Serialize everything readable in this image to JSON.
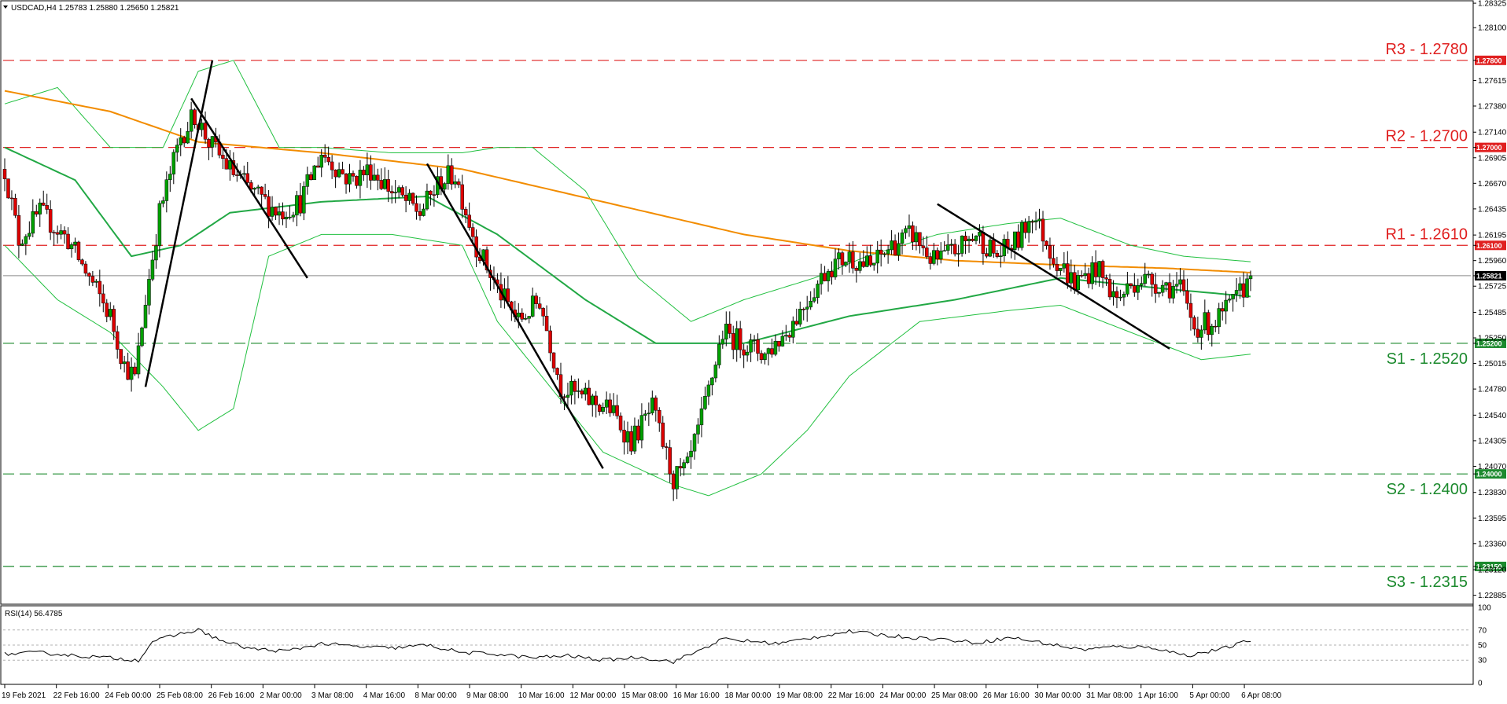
{
  "header": {
    "symbol_line": "USDCAD,H4  1.25783 1.25880 1.25650 1.25821",
    "rsi_label": "RSI(14) 56.4785"
  },
  "colors": {
    "bull": "#00a000",
    "bear": "#dd0000",
    "ma_slow": "#f28c00",
    "ma_fast": "#22a845",
    "bands": "#22c040",
    "resistance": "#e02020",
    "support": "#1c8a2e",
    "trend": "#000000"
  },
  "chart_data": [
    {
      "type": "candlestick",
      "symbol": "USDCAD",
      "timeframe": "H4",
      "y_ticks": [
        "1.28325",
        "1.28100",
        "1.27800",
        "1.27615",
        "1.27380",
        "1.27140",
        "1.27000",
        "1.26905",
        "1.26670",
        "1.26435",
        "1.26195",
        "1.26100",
        "1.25960",
        "1.25821",
        "1.25725",
        "1.25485",
        "1.25250",
        "1.25200",
        "1.25015",
        "1.24780",
        "1.24540",
        "1.24305",
        "1.24070",
        "1.24000",
        "1.23830",
        "1.23595",
        "1.23360",
        "1.23150",
        "1.23120",
        "1.22885"
      ],
      "ylim": [
        1.2281,
        1.2834
      ],
      "x_ticks": [
        "19 Feb 2021",
        "22 Feb 16:00",
        "24 Feb 00:00",
        "25 Feb 08:00",
        "26 Feb 16:00",
        "2 Mar 00:00",
        "3 Mar 08:00",
        "4 Mar 16:00",
        "8 Mar 00:00",
        "9 Mar 08:00",
        "10 Mar 16:00",
        "12 Mar 00:00",
        "15 Mar 08:00",
        "16 Mar 16:00",
        "18 Mar 00:00",
        "19 Mar 08:00",
        "22 Mar 16:00",
        "24 Mar 00:00",
        "25 Mar 08:00",
        "26 Mar 16:00",
        "30 Mar 00:00",
        "31 Mar 08:00",
        "1 Apr 16:00",
        "5 Apr 00:00",
        "6 Apr 08:00"
      ],
      "levels": [
        {
          "label": "R3 - 1.2780",
          "value": 1.278,
          "badge": "1.27800",
          "kind": "resistance"
        },
        {
          "label": "R2 - 1.2700",
          "value": 1.27,
          "badge": "1.27000",
          "kind": "resistance"
        },
        {
          "label": "R1 - 1.2610",
          "value": 1.261,
          "badge": "1.26100",
          "kind": "resistance"
        },
        {
          "label": "S1 - 1.2520",
          "value": 1.252,
          "badge": "1.25200",
          "kind": "support"
        },
        {
          "label": "S2 - 1.2400",
          "value": 1.24,
          "badge": "1.24000",
          "kind": "support"
        },
        {
          "label": "S3 - 1.2315",
          "value": 1.2315,
          "badge": "1.23150",
          "kind": "support"
        }
      ],
      "current_price": {
        "value": 1.25821,
        "badge": "1.25821"
      },
      "ohlc_waypoints": [
        {
          "i": 0,
          "c": 1.268
        },
        {
          "i": 4,
          "c": 1.2615
        },
        {
          "i": 10,
          "c": 1.264
        },
        {
          "i": 18,
          "c": 1.2615
        },
        {
          "i": 24,
          "c": 1.258
        },
        {
          "i": 30,
          "c": 1.2545
        },
        {
          "i": 34,
          "c": 1.25
        },
        {
          "i": 37,
          "c": 1.2488
        },
        {
          "i": 40,
          "c": 1.256
        },
        {
          "i": 44,
          "c": 1.264
        },
        {
          "i": 50,
          "c": 1.271
        },
        {
          "i": 54,
          "c": 1.273
        },
        {
          "i": 58,
          "c": 1.2705
        },
        {
          "i": 64,
          "c": 1.268
        },
        {
          "i": 70,
          "c": 1.266
        },
        {
          "i": 78,
          "c": 1.264
        },
        {
          "i": 84,
          "c": 1.265
        },
        {
          "i": 90,
          "c": 1.2695
        },
        {
          "i": 98,
          "c": 1.267
        },
        {
          "i": 104,
          "c": 1.268
        },
        {
          "i": 110,
          "c": 1.266
        },
        {
          "i": 118,
          "c": 1.264
        },
        {
          "i": 124,
          "c": 1.267
        },
        {
          "i": 128,
          "c": 1.2675
        },
        {
          "i": 134,
          "c": 1.261
        },
        {
          "i": 140,
          "c": 1.257
        },
        {
          "i": 146,
          "c": 1.254
        },
        {
          "i": 152,
          "c": 1.256
        },
        {
          "i": 158,
          "c": 1.248
        },
        {
          "i": 164,
          "c": 1.247
        },
        {
          "i": 172,
          "c": 1.246
        },
        {
          "i": 178,
          "c": 1.243
        },
        {
          "i": 184,
          "c": 1.246
        },
        {
          "i": 190,
          "c": 1.2395
        },
        {
          "i": 194,
          "c": 1.2405
        },
        {
          "i": 198,
          "c": 1.245
        },
        {
          "i": 204,
          "c": 1.253
        },
        {
          "i": 210,
          "c": 1.252
        },
        {
          "i": 216,
          "c": 1.251
        },
        {
          "i": 222,
          "c": 1.253
        },
        {
          "i": 228,
          "c": 1.256
        },
        {
          "i": 234,
          "c": 1.259
        },
        {
          "i": 240,
          "c": 1.26
        },
        {
          "i": 246,
          "c": 1.259
        },
        {
          "i": 252,
          "c": 1.261
        },
        {
          "i": 258,
          "c": 1.262
        },
        {
          "i": 264,
          "c": 1.2595
        },
        {
          "i": 270,
          "c": 1.2605
        },
        {
          "i": 276,
          "c": 1.262
        },
        {
          "i": 282,
          "c": 1.26
        },
        {
          "i": 288,
          "c": 1.2615
        },
        {
          "i": 292,
          "c": 1.264
        },
        {
          "i": 298,
          "c": 1.26
        },
        {
          "i": 304,
          "c": 1.2575
        },
        {
          "i": 310,
          "c": 1.259
        },
        {
          "i": 316,
          "c": 1.256
        },
        {
          "i": 322,
          "c": 1.258
        },
        {
          "i": 328,
          "c": 1.2575
        },
        {
          "i": 334,
          "c": 1.257
        },
        {
          "i": 338,
          "c": 1.2535
        },
        {
          "i": 344,
          "c": 1.254
        },
        {
          "i": 350,
          "c": 1.256
        },
        {
          "i": 354,
          "c": 1.2582
        }
      ],
      "n_bars": 355,
      "ma_slow_pts": [
        [
          0,
          1.2752
        ],
        [
          30,
          1.2733
        ],
        [
          55,
          1.2705
        ],
        [
          90,
          1.2695
        ],
        [
          130,
          1.268
        ],
        [
          170,
          1.265
        ],
        [
          210,
          1.262
        ],
        [
          240,
          1.2605
        ],
        [
          270,
          1.2596
        ],
        [
          300,
          1.2592
        ],
        [
          330,
          1.2589
        ],
        [
          354,
          1.2585
        ]
      ],
      "ma_fast_pts": [
        [
          0,
          1.27
        ],
        [
          20,
          1.267
        ],
        [
          36,
          1.26
        ],
        [
          50,
          1.261
        ],
        [
          64,
          1.264
        ],
        [
          90,
          1.265
        ],
        [
          120,
          1.2655
        ],
        [
          140,
          1.262
        ],
        [
          165,
          1.256
        ],
        [
          185,
          1.252
        ],
        [
          210,
          1.252
        ],
        [
          240,
          1.2545
        ],
        [
          270,
          1.256
        ],
        [
          300,
          1.258
        ],
        [
          330,
          1.257
        ],
        [
          354,
          1.2563
        ]
      ],
      "upper_band_pts": [
        [
          0,
          1.274
        ],
        [
          15,
          1.2755
        ],
        [
          30,
          1.27
        ],
        [
          45,
          1.27
        ],
        [
          55,
          1.277
        ],
        [
          65,
          1.278
        ],
        [
          78,
          1.27
        ],
        [
          90,
          1.27
        ],
        [
          110,
          1.2695
        ],
        [
          130,
          1.2695
        ],
        [
          140,
          1.27
        ],
        [
          150,
          1.27
        ],
        [
          165,
          1.266
        ],
        [
          180,
          1.258
        ],
        [
          195,
          1.254
        ],
        [
          210,
          1.256
        ],
        [
          230,
          1.258
        ],
        [
          245,
          1.26
        ],
        [
          265,
          1.262
        ],
        [
          285,
          1.263
        ],
        [
          300,
          1.2635
        ],
        [
          320,
          1.261
        ],
        [
          335,
          1.26
        ],
        [
          354,
          1.2595
        ]
      ],
      "lower_band_pts": [
        [
          0,
          1.261
        ],
        [
          15,
          1.256
        ],
        [
          30,
          1.253
        ],
        [
          45,
          1.248
        ],
        [
          55,
          1.244
        ],
        [
          65,
          1.246
        ],
        [
          75,
          1.26
        ],
        [
          90,
          1.262
        ],
        [
          110,
          1.262
        ],
        [
          130,
          1.261
        ],
        [
          140,
          1.254
        ],
        [
          155,
          1.248
        ],
        [
          170,
          1.242
        ],
        [
          190,
          1.239
        ],
        [
          200,
          1.238
        ],
        [
          215,
          1.24
        ],
        [
          228,
          1.244
        ],
        [
          240,
          1.249
        ],
        [
          260,
          1.254
        ],
        [
          285,
          1.255
        ],
        [
          300,
          1.2555
        ],
        [
          320,
          1.253
        ],
        [
          340,
          1.2505
        ],
        [
          354,
          1.251
        ]
      ],
      "trend_lines": [
        {
          "from": [
            40,
            1.248
          ],
          "to": [
            59,
            1.278
          ]
        },
        {
          "from": [
            53,
            1.2745
          ],
          "to": [
            86,
            1.258
          ]
        },
        {
          "from": [
            120,
            1.2685
          ],
          "to": [
            170,
            1.2405
          ]
        },
        {
          "from": [
            265,
            1.2648
          ],
          "to": [
            331,
            1.2515
          ]
        }
      ]
    },
    {
      "type": "line",
      "title": "RSI(14) 56.4785",
      "ylim": [
        0,
        100
      ],
      "y_ticks": [
        "100",
        "70",
        "50",
        "30",
        "0"
      ],
      "reference_levels": [
        70,
        50,
        30
      ],
      "values_waypoints": [
        [
          0,
          38
        ],
        [
          10,
          40
        ],
        [
          20,
          36
        ],
        [
          30,
          33
        ],
        [
          38,
          30
        ],
        [
          42,
          55
        ],
        [
          50,
          65
        ],
        [
          55,
          70
        ],
        [
          62,
          55
        ],
        [
          70,
          45
        ],
        [
          80,
          42
        ],
        [
          90,
          52
        ],
        [
          100,
          48
        ],
        [
          110,
          46
        ],
        [
          120,
          50
        ],
        [
          130,
          40
        ],
        [
          140,
          38
        ],
        [
          150,
          33
        ],
        [
          160,
          36
        ],
        [
          170,
          30
        ],
        [
          180,
          34
        ],
        [
          190,
          28
        ],
        [
          196,
          40
        ],
        [
          204,
          58
        ],
        [
          212,
          55
        ],
        [
          220,
          52
        ],
        [
          232,
          62
        ],
        [
          240,
          68
        ],
        [
          250,
          63
        ],
        [
          258,
          60
        ],
        [
          266,
          58
        ],
        [
          276,
          53
        ],
        [
          286,
          60
        ],
        [
          296,
          52
        ],
        [
          306,
          44
        ],
        [
          316,
          48
        ],
        [
          326,
          47
        ],
        [
          336,
          36
        ],
        [
          346,
          45
        ],
        [
          354,
          56.5
        ]
      ]
    }
  ]
}
